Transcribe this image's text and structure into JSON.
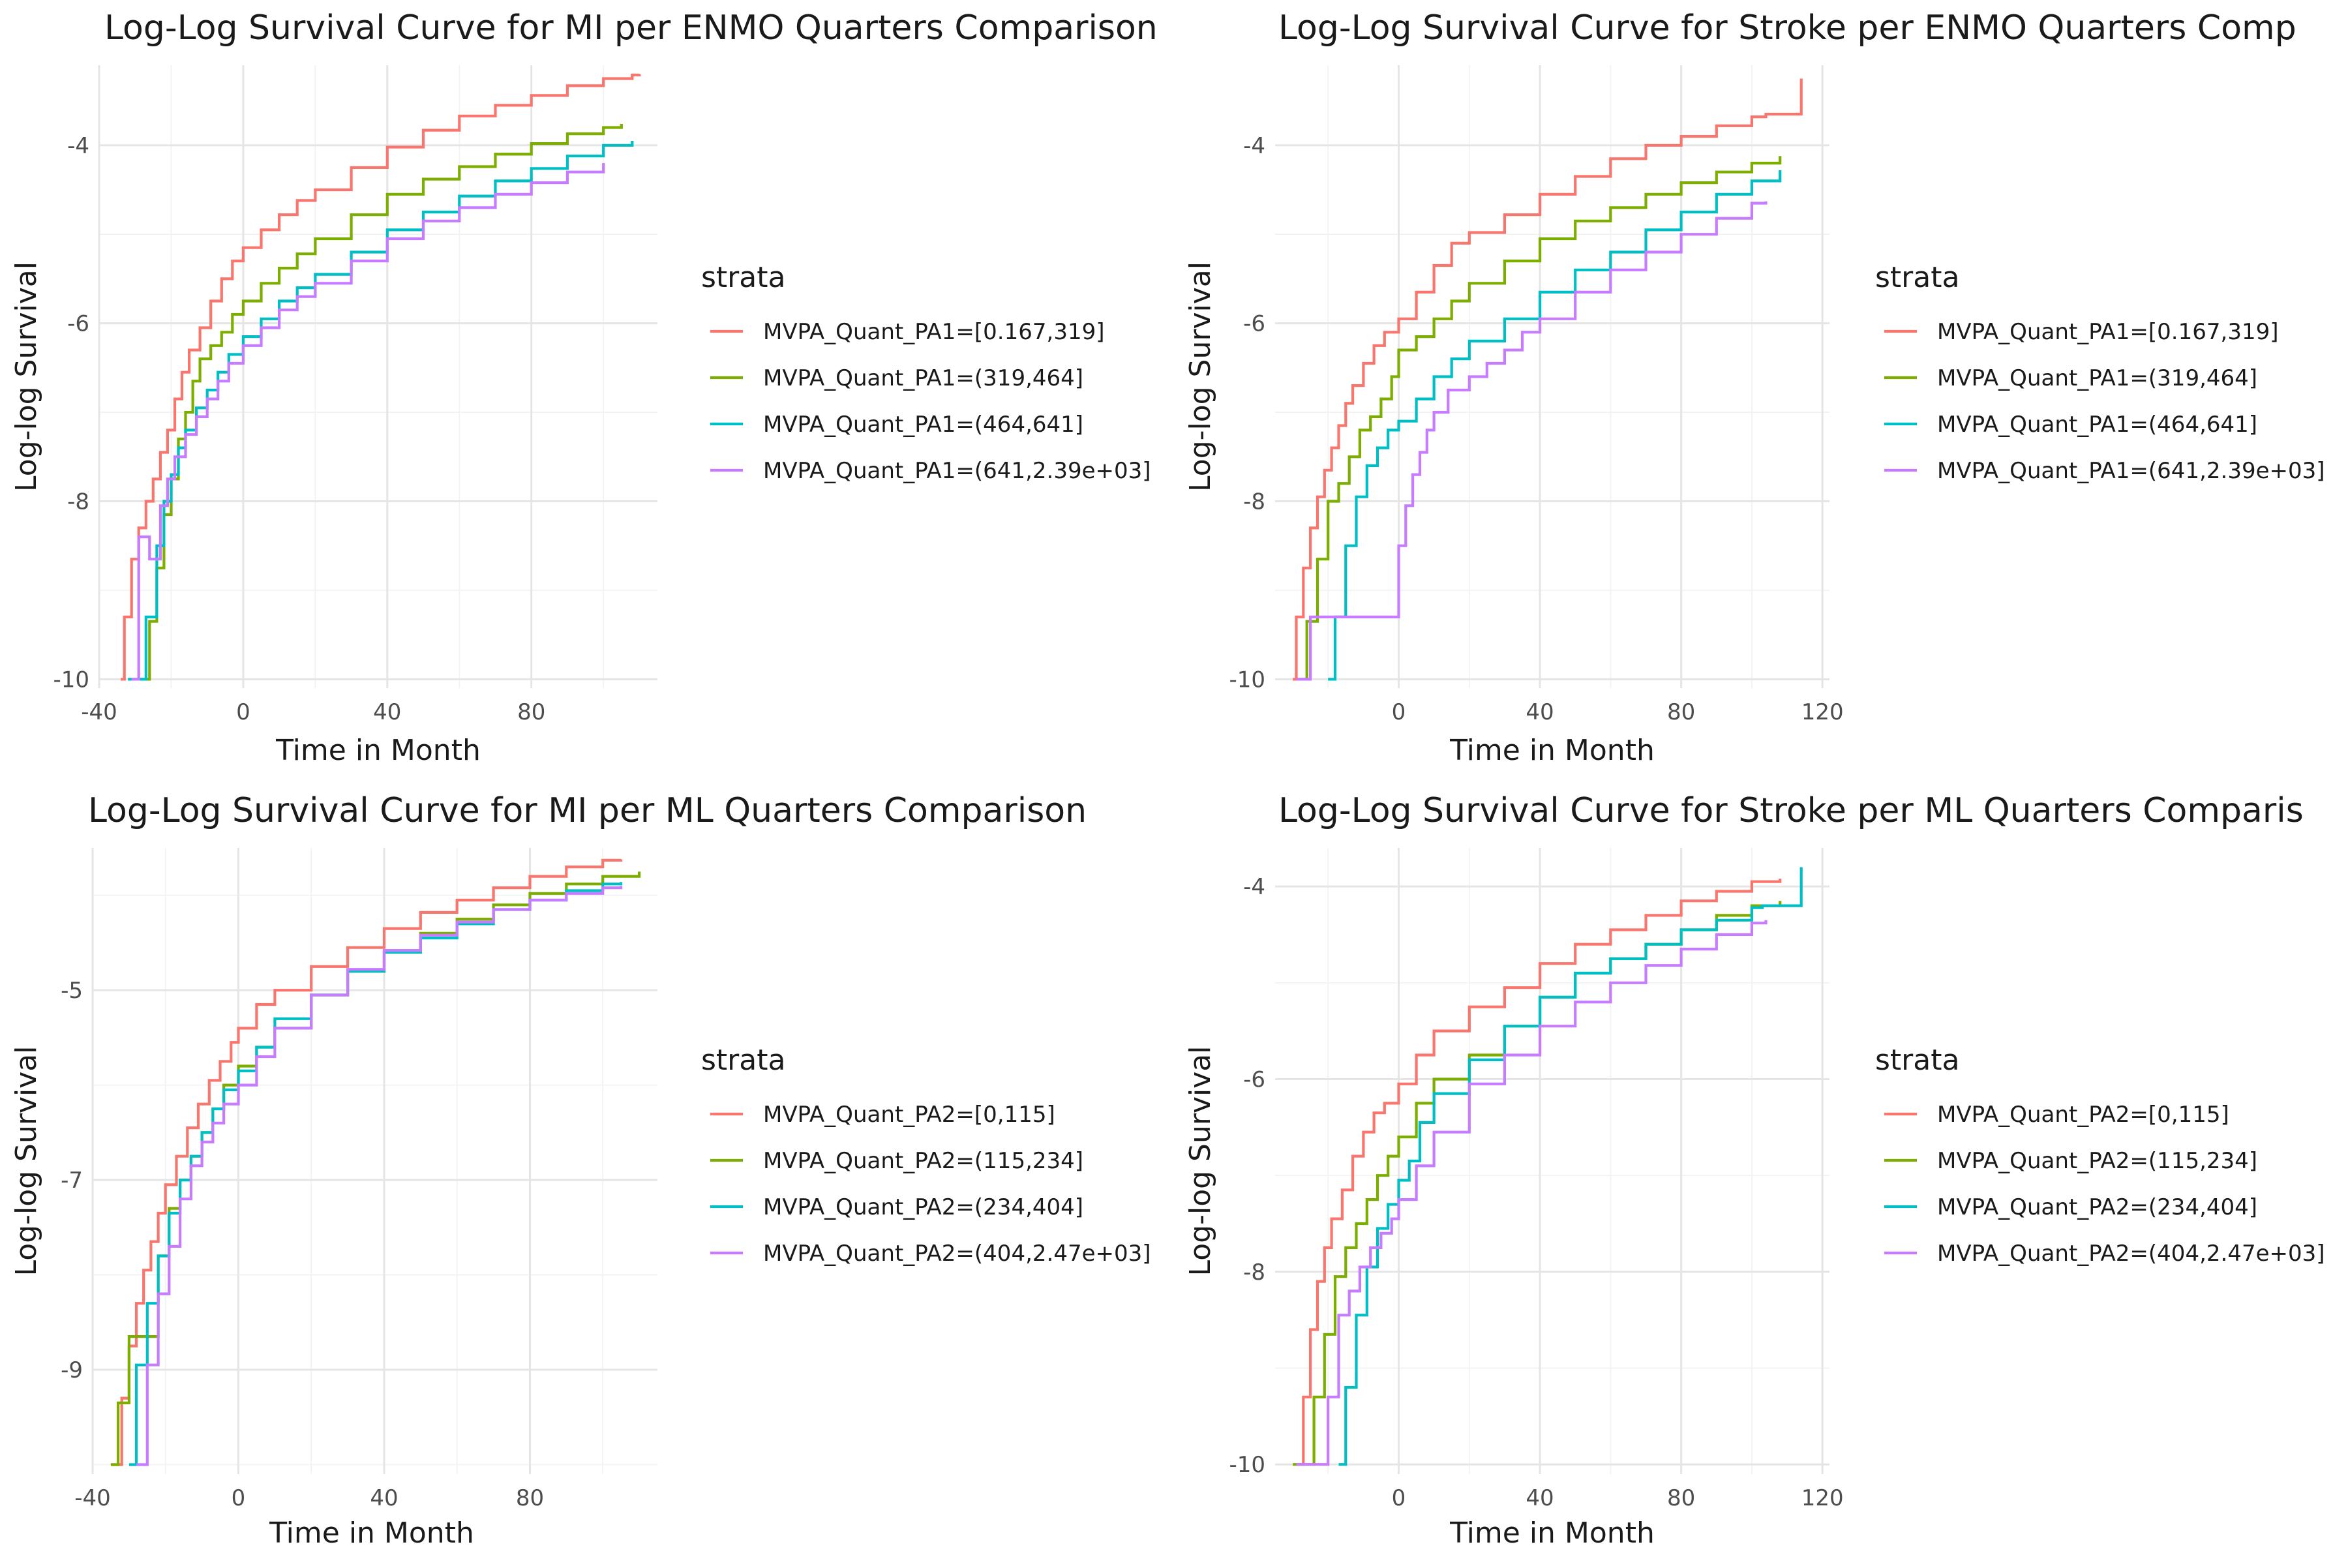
{
  "colors": {
    "red": "#F8766D",
    "green": "#7CAE00",
    "teal": "#00BFC4",
    "purple": "#C77CFF"
  },
  "chart_data": [
    {
      "type": "line",
      "step": true,
      "title": "Log-Log Survival Curve for MI per ENMO Quarters Comparison",
      "xlabel": "Time in Month",
      "ylabel": "Log-log Survival",
      "xlim": [
        -40,
        115
      ],
      "ylim": [
        -10.1,
        -3.1
      ],
      "xticks": [
        -40,
        0,
        40,
        80
      ],
      "xtick_labels": [
        "-40",
        "0",
        "40",
        "80"
      ],
      "yticks": [
        -10,
        -8,
        -6,
        -4
      ],
      "ytick_labels": [
        "-10",
        "-8",
        "-6",
        "-4"
      ],
      "grid": true,
      "legend": {
        "title": "strata",
        "position": "right"
      },
      "series": [
        {
          "name": "MVPA_Quant_PA1=[0.167,319]",
          "color": "#F8766D",
          "x": [
            -34,
            -33,
            -31,
            -29,
            -27,
            -25,
            -23,
            -21,
            -19,
            -17,
            -15,
            -12,
            -9,
            -6,
            -3,
            0,
            5,
            10,
            15,
            20,
            30,
            40,
            50,
            60,
            70,
            80,
            90,
            100,
            108,
            110
          ],
          "y": [
            -10.0,
            -9.3,
            -8.65,
            -8.3,
            -8.0,
            -7.75,
            -7.45,
            -7.2,
            -6.85,
            -6.55,
            -6.3,
            -6.05,
            -5.75,
            -5.5,
            -5.3,
            -5.15,
            -4.95,
            -4.78,
            -4.62,
            -4.5,
            -4.25,
            -4.02,
            -3.83,
            -3.67,
            -3.55,
            -3.44,
            -3.33,
            -3.25,
            -3.21,
            -3.2
          ]
        },
        {
          "name": "MVPA_Quant_PA1=(319,464]",
          "color": "#7CAE00",
          "x": [
            -29,
            -26,
            -24,
            -22,
            -20,
            -18,
            -16,
            -14,
            -12,
            -9,
            -6,
            -3,
            0,
            5,
            10,
            15,
            20,
            30,
            40,
            50,
            60,
            70,
            80,
            90,
            100,
            105
          ],
          "y": [
            -10.0,
            -9.35,
            -8.75,
            -8.15,
            -7.75,
            -7.3,
            -7.0,
            -6.65,
            -6.4,
            -6.25,
            -6.1,
            -5.9,
            -5.75,
            -5.55,
            -5.38,
            -5.22,
            -5.05,
            -4.78,
            -4.55,
            -4.38,
            -4.24,
            -4.1,
            -3.98,
            -3.87,
            -3.8,
            -3.76
          ]
        },
        {
          "name": "MVPA_Quant_PA1=(464,641]",
          "color": "#00BFC4",
          "x": [
            -32,
            -27,
            -24,
            -22,
            -20,
            -18,
            -16,
            -13,
            -10,
            -7,
            -4,
            0,
            5,
            10,
            15,
            20,
            30,
            40,
            50,
            60,
            70,
            80,
            90,
            100,
            108
          ],
          "y": [
            -10.0,
            -9.3,
            -8.5,
            -8.0,
            -7.7,
            -7.4,
            -7.2,
            -6.95,
            -6.75,
            -6.55,
            -6.35,
            -6.15,
            -5.95,
            -5.75,
            -5.6,
            -5.45,
            -5.2,
            -4.95,
            -4.75,
            -4.57,
            -4.4,
            -4.26,
            -4.12,
            -4.0,
            -3.95
          ]
        },
        {
          "name": "MVPA_Quant_PA1=(641,2.39e+03]",
          "color": "#C77CFF",
          "x": [
            -31,
            -29,
            -26,
            -23,
            -21,
            -19,
            -16,
            -13,
            -10,
            -7,
            -4,
            0,
            5,
            10,
            15,
            20,
            30,
            40,
            50,
            60,
            70,
            80,
            90,
            100
          ],
          "y": [
            -10.0,
            -8.4,
            -8.65,
            -8.05,
            -7.75,
            -7.5,
            -7.25,
            -7.05,
            -6.85,
            -6.65,
            -6.45,
            -6.25,
            -6.05,
            -5.85,
            -5.7,
            -5.55,
            -5.3,
            -5.05,
            -4.85,
            -4.7,
            -4.55,
            -4.42,
            -4.3,
            -4.2
          ]
        }
      ]
    },
    {
      "type": "line",
      "step": true,
      "title": "Log-Log Survival Curve for Stroke per ENMO Quarters Comp",
      "xlabel": "Time in Month",
      "ylabel": "Log-log Survival",
      "xlim": [
        -35,
        122
      ],
      "ylim": [
        -10.1,
        -3.1
      ],
      "xticks": [
        0,
        40,
        80,
        120
      ],
      "xtick_labels": [
        "0",
        "40",
        "80",
        "120"
      ],
      "yticks": [
        -10,
        -8,
        -6,
        -4
      ],
      "ytick_labels": [
        "-10",
        "-8",
        "-6",
        "-4"
      ],
      "grid": true,
      "legend": {
        "title": "strata",
        "position": "right"
      },
      "series": [
        {
          "name": "MVPA_Quant_PA1=[0.167,319]",
          "color": "#F8766D",
          "x": [
            -30,
            -29,
            -27,
            -25,
            -23,
            -21,
            -19,
            -17,
            -15,
            -13,
            -10,
            -7,
            -4,
            0,
            5,
            10,
            15,
            20,
            30,
            40,
            50,
            60,
            70,
            80,
            90,
            100,
            104,
            114,
            114
          ],
          "y": [
            -10.0,
            -9.3,
            -8.75,
            -8.3,
            -7.95,
            -7.65,
            -7.4,
            -7.15,
            -6.9,
            -6.7,
            -6.45,
            -6.25,
            -6.1,
            -5.95,
            -5.65,
            -5.35,
            -5.1,
            -4.98,
            -4.78,
            -4.55,
            -4.35,
            -4.15,
            -4.0,
            -3.9,
            -3.78,
            -3.68,
            -3.65,
            -3.65,
            -3.25
          ]
        },
        {
          "name": "MVPA_Quant_PA1=(319,464]",
          "color": "#7CAE00",
          "x": [
            -29,
            -26,
            -23,
            -20,
            -17,
            -14,
            -11,
            -8,
            -5,
            -2,
            0,
            5,
            10,
            15,
            20,
            30,
            40,
            50,
            60,
            70,
            80,
            90,
            100,
            108
          ],
          "y": [
            -10.0,
            -9.35,
            -8.65,
            -8.0,
            -7.8,
            -7.5,
            -7.2,
            -7.05,
            -6.85,
            -6.6,
            -6.3,
            -6.15,
            -5.95,
            -5.75,
            -5.55,
            -5.3,
            -5.05,
            -4.85,
            -4.7,
            -4.55,
            -4.42,
            -4.3,
            -4.2,
            -4.12
          ]
        },
        {
          "name": "MVPA_Quant_PA1=(464,641]",
          "color": "#00BFC4",
          "x": [
            -20,
            -18,
            -15,
            -12,
            -9,
            -6,
            -3,
            0,
            5,
            10,
            15,
            20,
            30,
            40,
            50,
            60,
            70,
            80,
            90,
            100,
            108
          ],
          "y": [
            -10.0,
            -9.3,
            -8.5,
            -7.95,
            -7.6,
            -7.4,
            -7.2,
            -7.1,
            -6.85,
            -6.6,
            -6.4,
            -6.2,
            -5.95,
            -5.65,
            -5.4,
            -5.2,
            -4.95,
            -4.75,
            -4.55,
            -4.4,
            -4.28
          ]
        },
        {
          "name": "MVPA_Quant_PA1=(641,2.39e+03]",
          "color": "#C77CFF",
          "x": [
            -29,
            -25,
            -18,
            0,
            2,
            4,
            6,
            8,
            10,
            14,
            20,
            25,
            30,
            35,
            40,
            50,
            60,
            70,
            80,
            90,
            100,
            104
          ],
          "y": [
            -10.0,
            -9.3,
            -9.3,
            -8.5,
            -8.05,
            -7.7,
            -7.45,
            -7.2,
            -7.0,
            -6.75,
            -6.6,
            -6.45,
            -6.3,
            -6.1,
            -5.95,
            -5.65,
            -5.4,
            -5.2,
            -5.0,
            -4.82,
            -4.65,
            -4.63
          ]
        }
      ]
    },
    {
      "type": "line",
      "step": true,
      "title": "Log-Log Survival Curve for MI per ML Quarters Comparison",
      "xlabel": "Time in Month",
      "ylabel": "Log-log Survival",
      "xlim": [
        -40,
        115
      ],
      "ylim": [
        -10.1,
        -3.5
      ],
      "xticks": [
        -40,
        0,
        40,
        80
      ],
      "xtick_labels": [
        "-40",
        "0",
        "40",
        "80"
      ],
      "yticks": [
        -9,
        -7,
        -5
      ],
      "ytick_labels": [
        "-9",
        "-7",
        "-5"
      ],
      "grid": true,
      "legend": {
        "title": "strata",
        "position": "right"
      },
      "series": [
        {
          "name": "MVPA_Quant_PA2=[0,115]",
          "color": "#F8766D",
          "x": [
            -35,
            -32,
            -30,
            -28,
            -26,
            -24,
            -22,
            -20,
            -17,
            -14,
            -11,
            -8,
            -5,
            -2,
            0,
            5,
            10,
            20,
            30,
            40,
            50,
            60,
            70,
            80,
            90,
            100,
            105
          ],
          "y": [
            -10.0,
            -9.3,
            -8.75,
            -8.3,
            -7.95,
            -7.65,
            -7.35,
            -7.05,
            -6.75,
            -6.45,
            -6.2,
            -5.95,
            -5.75,
            -5.55,
            -5.4,
            -5.15,
            -5.0,
            -4.75,
            -4.55,
            -4.35,
            -4.18,
            -4.05,
            -3.92,
            -3.8,
            -3.7,
            -3.63,
            -3.62
          ]
        },
        {
          "name": "MVPA_Quant_PA2=(115,234]",
          "color": "#7CAE00",
          "x": [
            -35,
            -33,
            -30,
            -25,
            -22,
            -19,
            -16,
            -13,
            -10,
            -7,
            -4,
            0,
            5,
            10,
            20,
            30,
            40,
            50,
            60,
            70,
            80,
            90,
            100,
            110
          ],
          "y": [
            -10.0,
            -9.35,
            -8.65,
            -8.65,
            -7.8,
            -7.3,
            -7.0,
            -6.75,
            -6.5,
            -6.25,
            -6.0,
            -5.8,
            -5.6,
            -5.4,
            -5.05,
            -4.8,
            -4.6,
            -4.4,
            -4.25,
            -4.1,
            -3.98,
            -3.88,
            -3.8,
            -3.75
          ]
        },
        {
          "name": "MVPA_Quant_PA2=(234,404]",
          "color": "#00BFC4",
          "x": [
            -30,
            -28,
            -25,
            -22,
            -19,
            -16,
            -13,
            -10,
            -7,
            -4,
            0,
            5,
            10,
            20,
            30,
            40,
            50,
            60,
            70,
            80,
            90,
            100,
            105
          ],
          "y": [
            -10.0,
            -8.95,
            -8.3,
            -7.8,
            -7.35,
            -7.0,
            -6.75,
            -6.5,
            -6.25,
            -6.05,
            -5.85,
            -5.6,
            -5.3,
            -5.05,
            -4.8,
            -4.6,
            -4.45,
            -4.3,
            -4.15,
            -4.05,
            -3.95,
            -3.88,
            -3.86
          ]
        },
        {
          "name": "MVPA_Quant_PA2=(404,2.47e+03]",
          "color": "#C77CFF",
          "x": [
            -28,
            -25,
            -22,
            -19,
            -16,
            -13,
            -10,
            -7,
            -4,
            0,
            5,
            10,
            20,
            30,
            40,
            50,
            60,
            70,
            80,
            90,
            100,
            105
          ],
          "y": [
            -10.0,
            -8.95,
            -8.2,
            -7.7,
            -7.2,
            -6.85,
            -6.6,
            -6.4,
            -6.2,
            -6.0,
            -5.7,
            -5.4,
            -5.05,
            -4.78,
            -4.58,
            -4.42,
            -4.28,
            -4.15,
            -4.05,
            -3.98,
            -3.92,
            -3.9
          ]
        }
      ]
    },
    {
      "type": "line",
      "step": true,
      "title": "Log-Log Survival Curve for Stroke per ML Quarters Comparis",
      "xlabel": "Time in Month",
      "ylabel": "Log-log Survival",
      "xlim": [
        -35,
        122
      ],
      "ylim": [
        -10.1,
        -3.6
      ],
      "xticks": [
        0,
        40,
        80,
        120
      ],
      "xtick_labels": [
        "0",
        "40",
        "80",
        "120"
      ],
      "yticks": [
        -10,
        -8,
        -6,
        -4
      ],
      "ytick_labels": [
        "-10",
        "-8",
        "-6",
        "-4"
      ],
      "grid": true,
      "legend": {
        "title": "strata",
        "position": "right"
      },
      "series": [
        {
          "name": "MVPA_Quant_PA2=[0,115]",
          "color": "#F8766D",
          "x": [
            -29,
            -27,
            -25,
            -23,
            -21,
            -19,
            -16,
            -13,
            -10,
            -7,
            -4,
            0,
            5,
            10,
            20,
            30,
            40,
            50,
            60,
            70,
            80,
            90,
            100,
            108
          ],
          "y": [
            -10.0,
            -9.3,
            -8.6,
            -8.1,
            -7.75,
            -7.45,
            -7.15,
            -6.8,
            -6.55,
            -6.35,
            -6.25,
            -6.05,
            -5.75,
            -5.5,
            -5.25,
            -5.05,
            -4.8,
            -4.6,
            -4.45,
            -4.3,
            -4.15,
            -4.05,
            -3.95,
            -3.92
          ]
        },
        {
          "name": "MVPA_Quant_PA2=(115,234]",
          "color": "#7CAE00",
          "x": [
            -30,
            -24,
            -21,
            -18,
            -15,
            -12,
            -9,
            -6,
            -3,
            0,
            5,
            10,
            20,
            30,
            40,
            50,
            60,
            70,
            80,
            90,
            100,
            108
          ],
          "y": [
            -10.0,
            -9.3,
            -8.65,
            -8.05,
            -7.75,
            -7.5,
            -7.25,
            -7.0,
            -6.8,
            -6.6,
            -6.25,
            -6.0,
            -5.75,
            -5.45,
            -5.15,
            -4.9,
            -4.75,
            -4.6,
            -4.45,
            -4.3,
            -4.2,
            -4.15
          ]
        },
        {
          "name": "MVPA_Quant_PA2=(234,404]",
          "color": "#00BFC4",
          "x": [
            -17,
            -15,
            -12,
            -9,
            -6,
            -3,
            0,
            3,
            6,
            10,
            20,
            30,
            40,
            50,
            60,
            70,
            80,
            90,
            100,
            103,
            114,
            114
          ],
          "y": [
            -10.0,
            -9.2,
            -8.45,
            -7.95,
            -7.55,
            -7.3,
            -7.05,
            -6.85,
            -6.45,
            -6.15,
            -5.8,
            -5.45,
            -5.15,
            -4.9,
            -4.75,
            -4.6,
            -4.45,
            -4.35,
            -4.22,
            -4.2,
            -4.2,
            -3.8
          ]
        },
        {
          "name": "MVPA_Quant_PA2=(404,2.47e+03]",
          "color": "#C77CFF",
          "x": [
            -29,
            -22,
            -20,
            -17,
            -14,
            -11,
            -8,
            -5,
            -2,
            0,
            5,
            10,
            20,
            30,
            40,
            50,
            60,
            70,
            80,
            90,
            100,
            104
          ],
          "y": [
            -10.0,
            -10.0,
            -9.3,
            -8.45,
            -8.2,
            -7.95,
            -7.75,
            -7.6,
            -7.45,
            -7.25,
            -6.9,
            -6.55,
            -6.05,
            -5.75,
            -5.45,
            -5.2,
            -5.0,
            -4.82,
            -4.65,
            -4.5,
            -4.38,
            -4.35
          ]
        }
      ]
    }
  ]
}
